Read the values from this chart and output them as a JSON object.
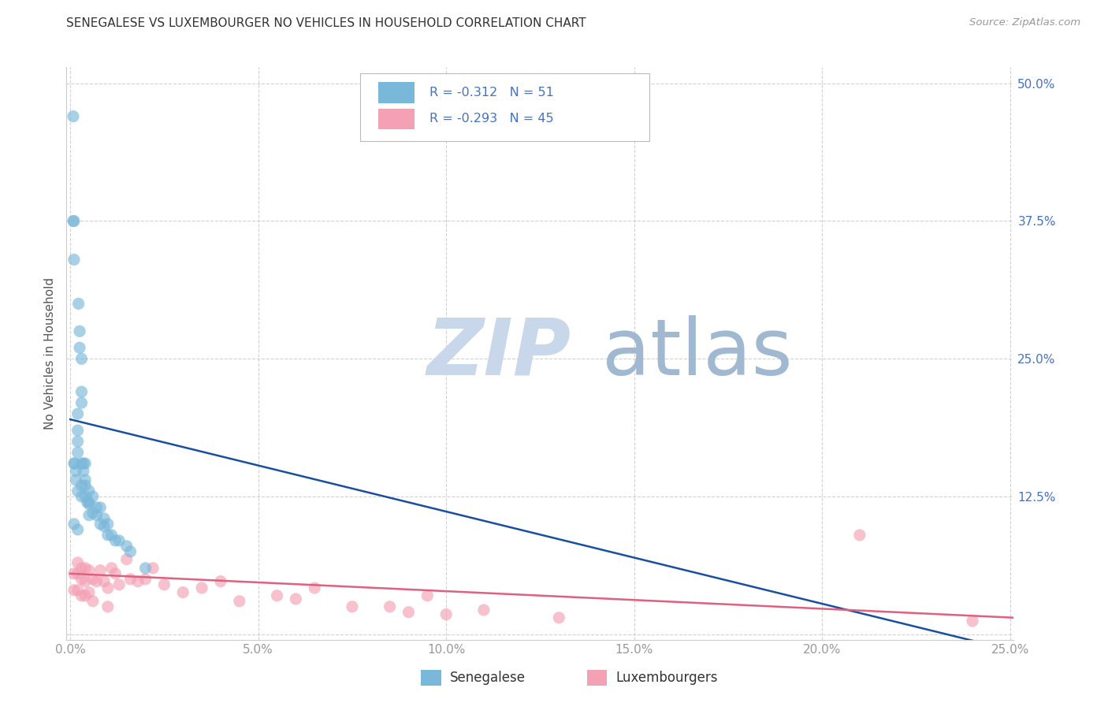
{
  "title": "SENEGALESE VS LUXEMBOURGER NO VEHICLES IN HOUSEHOLD CORRELATION CHART",
  "source": "Source: ZipAtlas.com",
  "ylabel": "No Vehicles in Household",
  "xlim": [
    -0.001,
    0.251
  ],
  "ylim": [
    -0.005,
    0.515
  ],
  "xticks": [
    0.0,
    0.05,
    0.1,
    0.15,
    0.2,
    0.25
  ],
  "yticks": [
    0.0,
    0.125,
    0.25,
    0.375,
    0.5
  ],
  "xticklabels": [
    "0.0%",
    "5.0%",
    "10.0%",
    "15.0%",
    "20.0%",
    "25.0%"
  ],
  "yticklabels_left": [
    "",
    "",
    "",
    "",
    ""
  ],
  "yticklabels_right": [
    "",
    "12.5%",
    "25.0%",
    "37.5%",
    "50.0%"
  ],
  "senegalese_color": "#7ab8d9",
  "luxembourger_color": "#f4a0b5",
  "trend_blue_color": "#1a4fa0",
  "trend_pink_color": "#e06080",
  "senegalese_R": -0.312,
  "senegalese_N": 51,
  "luxembourger_R": -0.293,
  "luxembourger_N": 45,
  "background_color": "#ffffff",
  "grid_color": "#cccccc",
  "watermark_zip_color": "#c8d8ea",
  "watermark_atlas_color": "#a0b8d0",
  "legend_label_blue": "Senegalese",
  "legend_label_pink": "Luxembourgers",
  "senegalese_x": [
    0.0008,
    0.0008,
    0.001,
    0.001,
    0.001,
    0.001,
    0.0012,
    0.0015,
    0.0015,
    0.002,
    0.002,
    0.002,
    0.002,
    0.002,
    0.002,
    0.0022,
    0.0025,
    0.0025,
    0.003,
    0.003,
    0.003,
    0.003,
    0.003,
    0.003,
    0.0035,
    0.0035,
    0.004,
    0.004,
    0.004,
    0.004,
    0.0045,
    0.005,
    0.005,
    0.005,
    0.005,
    0.006,
    0.006,
    0.007,
    0.007,
    0.008,
    0.008,
    0.009,
    0.009,
    0.01,
    0.01,
    0.011,
    0.012,
    0.013,
    0.015,
    0.016,
    0.02
  ],
  "senegalese_y": [
    0.47,
    0.375,
    0.375,
    0.34,
    0.155,
    0.1,
    0.155,
    0.148,
    0.14,
    0.2,
    0.185,
    0.175,
    0.165,
    0.13,
    0.095,
    0.3,
    0.275,
    0.26,
    0.25,
    0.22,
    0.21,
    0.155,
    0.135,
    0.125,
    0.155,
    0.148,
    0.155,
    0.14,
    0.135,
    0.125,
    0.12,
    0.13,
    0.12,
    0.118,
    0.108,
    0.125,
    0.11,
    0.115,
    0.108,
    0.115,
    0.1,
    0.105,
    0.098,
    0.1,
    0.09,
    0.09,
    0.085,
    0.085,
    0.08,
    0.075,
    0.06
  ],
  "luxembourger_x": [
    0.001,
    0.001,
    0.002,
    0.002,
    0.002,
    0.003,
    0.003,
    0.003,
    0.004,
    0.004,
    0.004,
    0.005,
    0.005,
    0.006,
    0.006,
    0.007,
    0.008,
    0.009,
    0.01,
    0.01,
    0.011,
    0.012,
    0.013,
    0.015,
    0.016,
    0.018,
    0.02,
    0.022,
    0.025,
    0.03,
    0.035,
    0.04,
    0.045,
    0.055,
    0.06,
    0.065,
    0.075,
    0.085,
    0.09,
    0.095,
    0.1,
    0.11,
    0.13,
    0.21,
    0.24
  ],
  "luxembourger_y": [
    0.055,
    0.04,
    0.065,
    0.055,
    0.04,
    0.06,
    0.05,
    0.035,
    0.06,
    0.048,
    0.035,
    0.058,
    0.038,
    0.05,
    0.03,
    0.048,
    0.058,
    0.048,
    0.042,
    0.025,
    0.06,
    0.055,
    0.045,
    0.068,
    0.05,
    0.048,
    0.05,
    0.06,
    0.045,
    0.038,
    0.042,
    0.048,
    0.03,
    0.035,
    0.032,
    0.042,
    0.025,
    0.025,
    0.02,
    0.035,
    0.018,
    0.022,
    0.015,
    0.09,
    0.012
  ],
  "title_fontsize": 11,
  "source_fontsize": 9.5,
  "tick_fontsize": 11,
  "ylabel_fontsize": 11,
  "scatter_size": 120,
  "scatter_alpha": 0.65
}
